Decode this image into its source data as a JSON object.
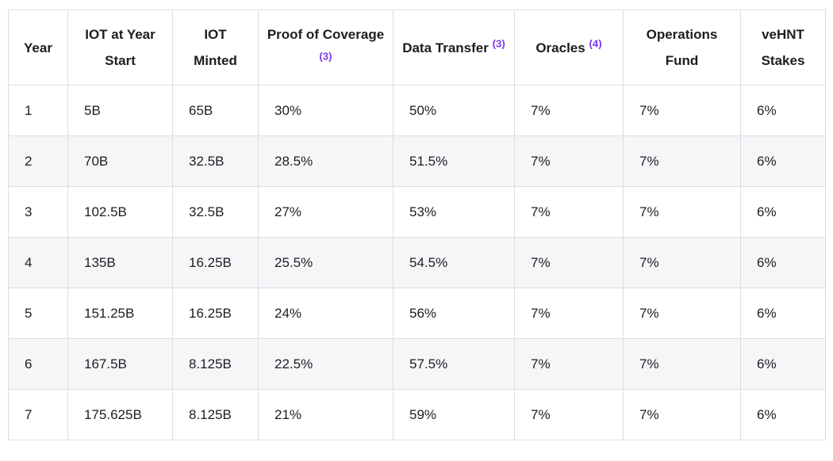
{
  "table": {
    "columns": [
      {
        "key": "year",
        "label": "Year",
        "sup": ""
      },
      {
        "key": "iot-at-year-start",
        "label": "IOT at Year Start",
        "sup": ""
      },
      {
        "key": "iot-minted",
        "label": "IOT Minted",
        "sup": ""
      },
      {
        "key": "proof-of-coverage",
        "label": "Proof of Coverage",
        "sup": "(3)"
      },
      {
        "key": "data-transfer",
        "label": "Data Transfer",
        "sup": "(3)"
      },
      {
        "key": "oracles",
        "label": "Oracles",
        "sup": "(4)"
      },
      {
        "key": "operations-fund",
        "label": "Operations Fund",
        "sup": ""
      },
      {
        "key": "vehnt-stakes",
        "label": "veHNT Stakes",
        "sup": ""
      }
    ],
    "rows": [
      [
        "1",
        "5B",
        "65B",
        "30%",
        "50%",
        "7%",
        "7%",
        "6%"
      ],
      [
        "2",
        "70B",
        "32.5B",
        "28.5%",
        "51.5%",
        "7%",
        "7%",
        "6%"
      ],
      [
        "3",
        "102.5B",
        "32.5B",
        "27%",
        "53%",
        "7%",
        "7%",
        "6%"
      ],
      [
        "4",
        "135B",
        "16.25B",
        "25.5%",
        "54.5%",
        "7%",
        "7%",
        "6%"
      ],
      [
        "5",
        "151.25B",
        "16.25B",
        "24%",
        "56%",
        "7%",
        "7%",
        "6%"
      ],
      [
        "6",
        "167.5B",
        "8.125B",
        "22.5%",
        "57.5%",
        "7%",
        "7%",
        "6%"
      ],
      [
        "7",
        "175.625B",
        "8.125B",
        "21%",
        "59%",
        "7%",
        "7%",
        "6%"
      ]
    ],
    "colors": {
      "footnote_accent": "#7c3aed",
      "border": "#dadde1",
      "row_alt_background": "#f6f6f9",
      "text": "#1c1e21",
      "background": "#ffffff"
    }
  }
}
